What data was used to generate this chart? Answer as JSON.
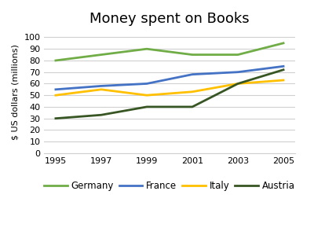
{
  "title": "Money spent on Books",
  "ylabel": "$ US dollars (millions)",
  "years": [
    1995,
    1997,
    1999,
    2001,
    2003,
    2005
  ],
  "series": {
    "Germany": {
      "values": [
        80,
        85,
        90,
        85,
        85,
        95
      ],
      "color": "#70AD47",
      "linewidth": 2.0
    },
    "France": {
      "values": [
        55,
        58,
        60,
        68,
        70,
        75
      ],
      "color": "#4472C4",
      "linewidth": 2.0
    },
    "Italy": {
      "values": [
        50,
        55,
        50,
        53,
        60,
        63
      ],
      "color": "#FFC000",
      "linewidth": 2.0
    },
    "Austria": {
      "values": [
        30,
        33,
        40,
        40,
        60,
        72
      ],
      "color": "#375623",
      "linewidth": 2.0
    }
  },
  "ylim": [
    0,
    105
  ],
  "yticks": [
    0,
    10,
    20,
    30,
    40,
    50,
    60,
    70,
    80,
    90,
    100
  ],
  "legend_order": [
    "Germany",
    "France",
    "Italy",
    "Austria"
  ],
  "background_color": "#ffffff",
  "title_fontsize": 13,
  "axis_fontsize": 8,
  "legend_fontsize": 8.5
}
